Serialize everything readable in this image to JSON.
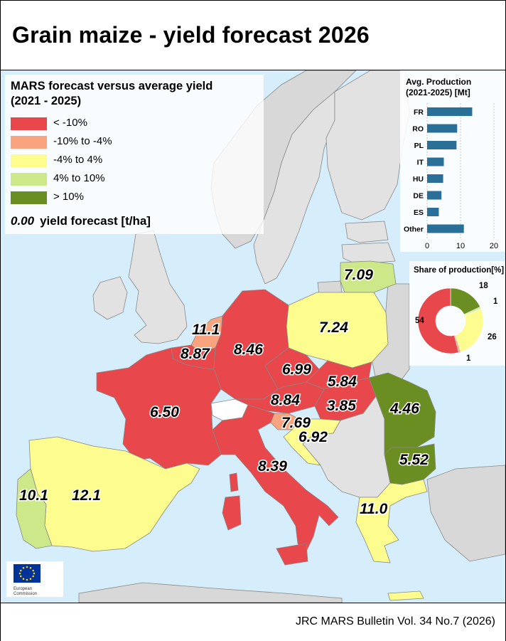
{
  "title": "Grain maize - yield forecast 2026",
  "footer": "JRC MARS Bulletin Vol. 34 No.7 (2026)",
  "legend": {
    "title_line1": "MARS forecast versus average yield",
    "title_line2": "(2021 - 2025)",
    "classes": [
      {
        "label": "< -10%",
        "color": "#e8474b"
      },
      {
        "label": "-10% to -4%",
        "color": "#f9a47e"
      },
      {
        "label": "-4% to 4%",
        "color": "#fdfc8f"
      },
      {
        "label": "4% to 10%",
        "color": "#cde889"
      },
      {
        "label": "> 10%",
        "color": "#6b8e23"
      }
    ],
    "example_value": "0.00",
    "example_label": "yield forecast [t/ha]"
  },
  "map_values": {
    "lithuania": "7.09",
    "poland": "7.24",
    "netherlands": "11.1",
    "belgium": "8.87",
    "germany": "8.46",
    "czechia": "6.99",
    "slovakia": "5.84",
    "france": "6.50",
    "austria": "8.84",
    "hungary": "3.85",
    "slovenia": "7.69",
    "croatia": "6.92",
    "romania": "4.46",
    "bulgaria": "5.52",
    "italy": "8.39",
    "portugal": "10.1",
    "spain": "12.1",
    "greece": "11.0"
  },
  "logo": {
    "line1": "European",
    "line2": "Commission"
  },
  "chart_data": [
    {
      "type": "bar",
      "title": "Avg. Production (2021-2025) [Mt]",
      "categories": [
        "FR",
        "RO",
        "PL",
        "IT",
        "HU",
        "DE",
        "ES",
        "Other"
      ],
      "values": [
        13.5,
        9.0,
        8.8,
        5.0,
        4.8,
        4.3,
        3.5,
        11.0
      ],
      "xlim": [
        0,
        20
      ],
      "xticks": [
        "0",
        "10",
        "20"
      ],
      "color": "#2a6f97"
    },
    {
      "type": "pie",
      "title": "Share of production[%]",
      "values": [
        18,
        1,
        26,
        1,
        54
      ],
      "colors": [
        "#6b8e23",
        "#cde889",
        "#fdfc8f",
        "#f9a47e",
        "#e8474b"
      ],
      "labels": [
        "18",
        "1",
        "26",
        "1",
        "54"
      ]
    }
  ]
}
